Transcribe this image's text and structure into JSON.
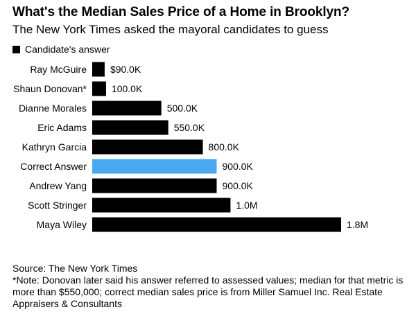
{
  "title": "What's the Median Sales Price of a Home in Brooklyn?",
  "subtitle": "The New York Times asked the mayoral candidates to guess",
  "legend": {
    "label": "Candidate's answer",
    "color": "#000000"
  },
  "colors": {
    "candidate": "#000000",
    "correct": "#4aa8f0"
  },
  "chart_data": {
    "type": "bar",
    "orientation": "horizontal",
    "title": "What's the Median Sales Price of a Home in Brooklyn?",
    "subtitle": "The New York Times asked the mayoral candidates to guess",
    "xlabel": "",
    "ylabel": "",
    "unit": "USD",
    "xlim": [
      0,
      1800000
    ],
    "grid": false,
    "legend_position": "top-left",
    "categories": [
      "Ray McGuire",
      "Shaun Donovan*",
      "Dianne Morales",
      "Eric Adams",
      "Kathryn Garcia",
      "Correct Answer",
      "Andrew Yang",
      "Scott Stringer",
      "Maya Wiley"
    ],
    "values": [
      90000,
      100000,
      500000,
      550000,
      800000,
      900000,
      900000,
      1000000,
      1800000
    ],
    "labels": [
      "$90.0K",
      "100.0K",
      "500.0K",
      "550.0K",
      "800.0K",
      "900.0K",
      "900.0K",
      "1.0M",
      "1.8M"
    ],
    "highlight": [
      "candidate",
      "candidate",
      "candidate",
      "candidate",
      "candidate",
      "correct",
      "candidate",
      "candidate",
      "candidate"
    ]
  },
  "source": "Source: The New York Times",
  "note": "*Note: Donovan later said his answer referred to assessed values; median for that metric is more than $550,000; correct median sales price is from Miller Samuel Inc. Real Estate Appraisers & Consultants"
}
